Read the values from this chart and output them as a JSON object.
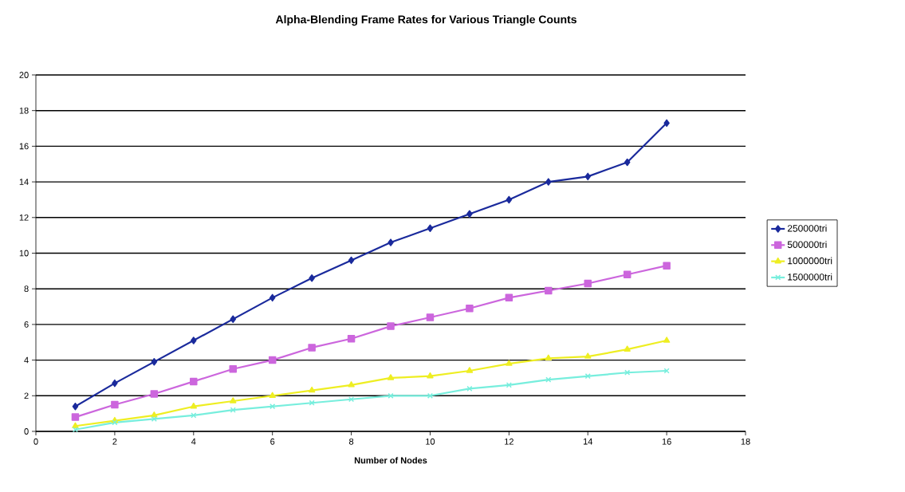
{
  "chart_data": {
    "type": "line",
    "title": "Alpha-Blending Frame Rates for Various Triangle Counts",
    "xlabel": "Number of Nodes",
    "x": [
      1,
      2,
      3,
      4,
      5,
      6,
      7,
      8,
      9,
      10,
      11,
      12,
      13,
      14,
      15,
      16
    ],
    "series": [
      {
        "name": "250000tri",
        "color": "#1a2a9c",
        "marker": "diamond",
        "values": [
          1.4,
          2.7,
          3.9,
          5.1,
          6.3,
          7.5,
          8.6,
          9.6,
          10.6,
          11.4,
          12.2,
          13.0,
          14.0,
          14.3,
          15.1,
          17.3
        ]
      },
      {
        "name": "500000tri",
        "color": "#cc66dd",
        "marker": "square",
        "values": [
          0.8,
          1.5,
          2.1,
          2.8,
          3.5,
          4.0,
          4.7,
          5.2,
          5.9,
          6.4,
          6.9,
          7.5,
          7.9,
          8.3,
          8.8,
          9.3
        ]
      },
      {
        "name": "1000000tri",
        "color": "#eeee22",
        "marker": "triangle",
        "values": [
          0.3,
          0.6,
          0.9,
          1.4,
          1.7,
          2.0,
          2.3,
          2.6,
          3.0,
          3.1,
          3.4,
          3.8,
          4.1,
          4.2,
          4.6,
          5.1
        ]
      },
      {
        "name": "1500000tri",
        "color": "#77eedd",
        "marker": "cross",
        "values": [
          0.1,
          0.5,
          0.7,
          0.9,
          1.2,
          1.4,
          1.6,
          1.8,
          2.0,
          2.0,
          2.4,
          2.6,
          2.9,
          3.1,
          3.3,
          3.4
        ]
      }
    ],
    "xlim": [
      0,
      18
    ],
    "xticks": [
      0,
      2,
      4,
      6,
      8,
      10,
      12,
      14,
      16,
      18
    ],
    "ylim": [
      0,
      20
    ],
    "yticks": [
      0,
      2,
      4,
      6,
      8,
      10,
      12,
      14,
      16,
      18,
      20
    ],
    "grid": "y",
    "legend": "right"
  }
}
